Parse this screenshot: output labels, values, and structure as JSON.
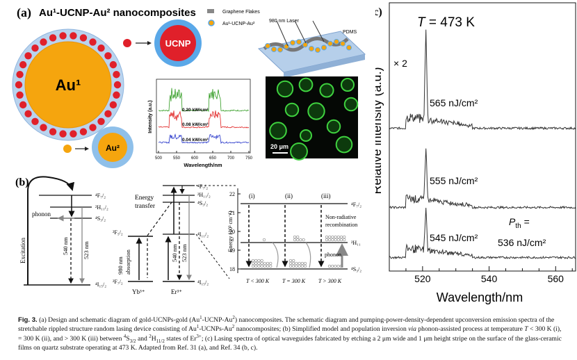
{
  "panel_a": {
    "label": "(a)",
    "title": "Au¹-UCNP-Au² nanocomposites",
    "legend_graphene": "Graphene Flakes",
    "legend_composite": "Au¹-UCNP-Au²",
    "laser_label": "980 nm Laser",
    "substrate_label": "PDMS",
    "core_big_label": "Au¹",
    "ucnp_label": "UCNP",
    "au2_label": "Au²",
    "spectrum": {
      "ylabel": "Intensity (a.u.)",
      "xlabel": "Wavelength/nm",
      "ticks": [
        "500",
        "550",
        "600",
        "650",
        "700",
        "750"
      ],
      "series_labels": [
        "0.20 kW/cm²",
        "0.08 kW/cm²",
        "0.04 kW/cm²"
      ],
      "colors": [
        "#2e9a1e",
        "#e02020",
        "#2030c8"
      ]
    },
    "micrograph_scale": "20 μm"
  },
  "panel_b": {
    "label": "(b)",
    "left": {
      "levels": [
        "⁴F₇/₂",
        "²H₁₁/₂",
        "⁴S₃/₂",
        "⁴I₁₅/₂"
      ],
      "phonon": "phonon",
      "excitation": "Excitation",
      "w540": "540 nm",
      "w523": "523 nm"
    },
    "middle": {
      "yb_levels": [
        "²F₅/₂",
        "²F₇/₂"
      ],
      "er_levels": [
        "⁴F₇/₂",
        "²H₁₁/₂",
        "⁴S₃/₂",
        "⁴I₁₁/₂",
        "⁴I₁₅/₂"
      ],
      "energy_transfer": [
        "Energy",
        "transfer"
      ],
      "absorption": [
        "980 nm",
        "absorption"
      ],
      "w540": "540 nm",
      "w523": "523 nm",
      "yb": "Yb³⁺",
      "er": "Er³⁺"
    },
    "right": {
      "ylabel": "Energy (10³ cm⁻¹)",
      "yticks": [
        "18",
        "19",
        "20",
        "21",
        "22"
      ],
      "cases": [
        "(i)",
        "(ii)",
        "(iii)"
      ],
      "conditions": [
        "T < 300 K",
        "T = 300 K",
        "T > 300 K"
      ],
      "levels": [
        "⁴F₇/₂",
        "²H₁₁",
        "⁴S₃/₂"
      ],
      "nonrad": [
        "Non-radiative",
        "recombination"
      ],
      "phonon": "phonon"
    }
  },
  "panel_c": {
    "label": "(c)",
    "temperature": "T = 473 K",
    "factor": "× 2",
    "ylabel": "Relative intensity (a.u.)",
    "xlabel": "Wavelength/nm",
    "energies": [
      "565 nJ/cm²",
      "555 nJ/cm²",
      "545 nJ/cm²"
    ],
    "threshold_label": "P",
    "threshold_sub": "th",
    "threshold_eq": " =",
    "threshold_value": "536 nJ/cm²",
    "chart_data": {
      "type": "line",
      "xlabel": "Wavelength/nm",
      "ylabel": "Relative intensity (a.u.)",
      "xlim": [
        510,
        566
      ],
      "xticks": [
        520,
        540,
        560
      ],
      "series": [
        {
          "name": "565 nJ/cm²",
          "peak_x": 521,
          "peak_height": 0.95
        },
        {
          "name": "555 nJ/cm²",
          "peak_x": 521,
          "peak_height": 0.55
        },
        {
          "name": "545 nJ/cm²",
          "peak_x": 521,
          "peak_height": 0.35
        }
      ]
    }
  },
  "caption": {
    "fig": "Fig. 3.",
    "text": [
      " (a) Design and schematic diagram of gold-UCNPs-gold (Au",
      "1",
      "-UCNP-Au",
      "2",
      ") nanocomposites. The schematic diagram and pumping-power-density-dependent upconversion emission spectra of the stretchable rippled structure random lasing device consisting of Au",
      "1",
      "-UCNPs-Au",
      "2",
      " nanocomposites; (b) Simplified model and population inversion ",
      "via",
      " phonon-assisted process at temperature ",
      "T",
      " < 300 K (i), = 300 K (ii), and > 300 K (iii) between ",
      "4",
      "S",
      "3/2",
      " and ",
      "2",
      "H",
      "11/2",
      " states of Er",
      "3+",
      "; (c) Lasing spectra of optical waveguides fabricated by etching a 2 μm wide and 1 μm height stripe on the surface of the glass-ceramic films on quartz substrate operating at 473 K. Adapted from Ref. 31 (a), and Ref. 34 (b, c)."
    ]
  }
}
